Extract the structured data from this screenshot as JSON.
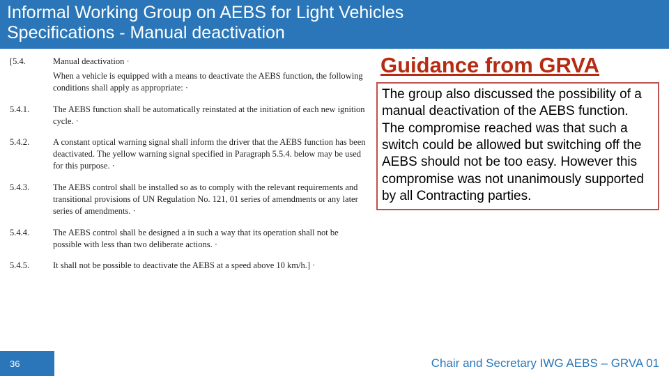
{
  "header": {
    "line1": "Informal Working Group on AEBS for Light Vehicles",
    "line2": "Specifications - Manual deactivation"
  },
  "spec": {
    "items": [
      {
        "num": "[5.4.",
        "title": "Manual deactivation ·",
        "body": "When a vehicle is equipped with a means to deactivate the AEBS function, the following conditions shall apply as appropriate: ·"
      },
      {
        "num": "5.4.1.",
        "title": "",
        "body": "The AEBS function shall be automatically reinstated at the initiation of each new ignition cycle. ·"
      },
      {
        "num": "5.4.2.",
        "title": "",
        "body": "A constant optical warning signal shall inform the driver that the AEBS function has been deactivated. The yellow warning signal specified in Paragraph 5.5.4. below may be used for this purpose. ·"
      },
      {
        "num": "5.4.3.",
        "title": "",
        "body": "The AEBS control shall be installed so as to comply with the relevant requirements and transitional provisions of UN Regulation No. 121, 01 series of amendments or any later series of amendments. ·"
      },
      {
        "num": "5.4.4.",
        "title": "",
        "body": "The AEBS control shall be designed a in such a way that its operation shall not be possible with less than two deliberate actions. ·"
      },
      {
        "num": "5.4.5.",
        "title": "",
        "body": "It shall not be possible to deactivate the AEBS at a speed above 10 km/h.] ·"
      }
    ]
  },
  "guidance": {
    "title": "Guidance from GRVA",
    "body": "The group also discussed the possibility of a manual deactivation of the AEBS function. The compromise reached was that such a switch could be allowed but switching off  the AEBS should not be too easy. However this compromise was not unanimously supported by all Contracting parties."
  },
  "footer": {
    "page": "36",
    "credit": "Chair and Secretary IWG AEBS – GRVA 01"
  },
  "colors": {
    "brand_blue": "#2a76b8",
    "accent_red": "#b62c12",
    "box_border": "#c0504d"
  }
}
